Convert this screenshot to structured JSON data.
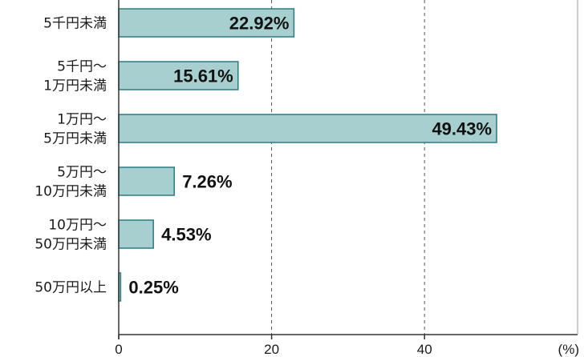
{
  "chart_data": {
    "type": "bar",
    "orientation": "horizontal",
    "categories": [
      [
        "5千円未満"
      ],
      [
        "5千円～",
        "1万円未満"
      ],
      [
        "1万円～",
        "5万円未満"
      ],
      [
        "5万円～",
        "10万円未満"
      ],
      [
        "10万円～",
        "50万円未満"
      ],
      [
        "50万円以上"
      ]
    ],
    "values": [
      22.92,
      15.61,
      49.43,
      7.26,
      4.53,
      0.25
    ],
    "data_labels": [
      "22.92%",
      "15.61%",
      "49.43%",
      "7.26%",
      "4.53%",
      "0.25%"
    ],
    "xticks": [
      0,
      20,
      40
    ],
    "xlim": [
      0,
      60
    ],
    "unit": "(%)",
    "grid": "vertical dashed",
    "colors": {
      "bar_fill": "#a8cfcf",
      "bar_stroke": "#2a7a80",
      "axis": "#333333",
      "grid": "#555555"
    }
  }
}
